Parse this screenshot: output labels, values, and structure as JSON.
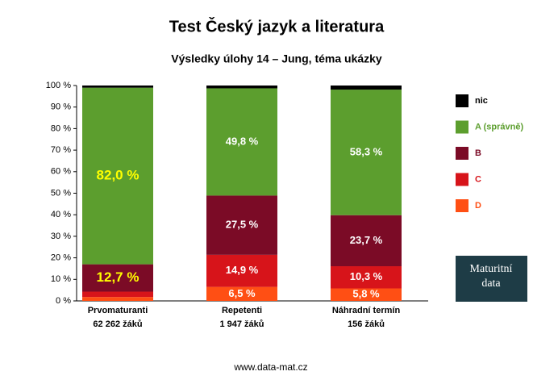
{
  "chart_data": {
    "type": "stacked_bar",
    "title": "Test Český jazyk a literatura",
    "subtitle": "Výsledky úlohy 14 – Jung, téma ukázky",
    "categories": [
      "Prvomaturanti",
      "Repetenti",
      "Náhradní termín"
    ],
    "category_notes": [
      "62 262 žáků",
      "1 947 žáků",
      "156 žáků"
    ],
    "series": [
      {
        "name": "D",
        "color": "#ff4f14",
        "values": [
          1.8,
          6.5,
          5.8
        ],
        "value_labels": [
          null,
          "6,5 %",
          "5,8 %"
        ]
      },
      {
        "name": "C",
        "color": "#d7141a",
        "values": [
          2.5,
          14.9,
          10.3
        ],
        "value_labels": [
          null,
          "14,9 %",
          "10,3 %"
        ]
      },
      {
        "name": "B",
        "color": "#7b0b26",
        "values": [
          12.7,
          27.5,
          23.7
        ],
        "value_labels": [
          "12,7 %",
          "27,5 %",
          "23,7 %"
        ]
      },
      {
        "name": "A (správně)",
        "color": "#5c9e2e",
        "values": [
          82.0,
          49.8,
          58.3
        ],
        "value_labels": [
          "82,0 %",
          "49,8 %",
          "58,3 %"
        ]
      },
      {
        "name": "nic",
        "color": "#000000",
        "values": [
          1.0,
          1.3,
          1.9
        ]
      }
    ],
    "value_label_colors": [
      "#ffff00",
      "#ffffff",
      "#ffffff"
    ],
    "ylim": [
      0,
      100
    ],
    "yticks": [
      {
        "value": 0,
        "label": "0 %"
      },
      {
        "value": 10,
        "label": "10 %"
      },
      {
        "value": 20,
        "label": "20 %"
      },
      {
        "value": 30,
        "label": "30 %"
      },
      {
        "value": 40,
        "label": "40 %"
      },
      {
        "value": 50,
        "label": "50 %"
      },
      {
        "value": 60,
        "label": "60 %"
      },
      {
        "value": 70,
        "label": "70 %"
      },
      {
        "value": 80,
        "label": "80 %"
      },
      {
        "value": 90,
        "label": "90 %"
      },
      {
        "value": 100,
        "label": "100 %"
      }
    ],
    "grid": false,
    "legend": "right",
    "logo": [
      "Maturitní",
      "data"
    ],
    "footer": "www.data-mat.cz"
  }
}
